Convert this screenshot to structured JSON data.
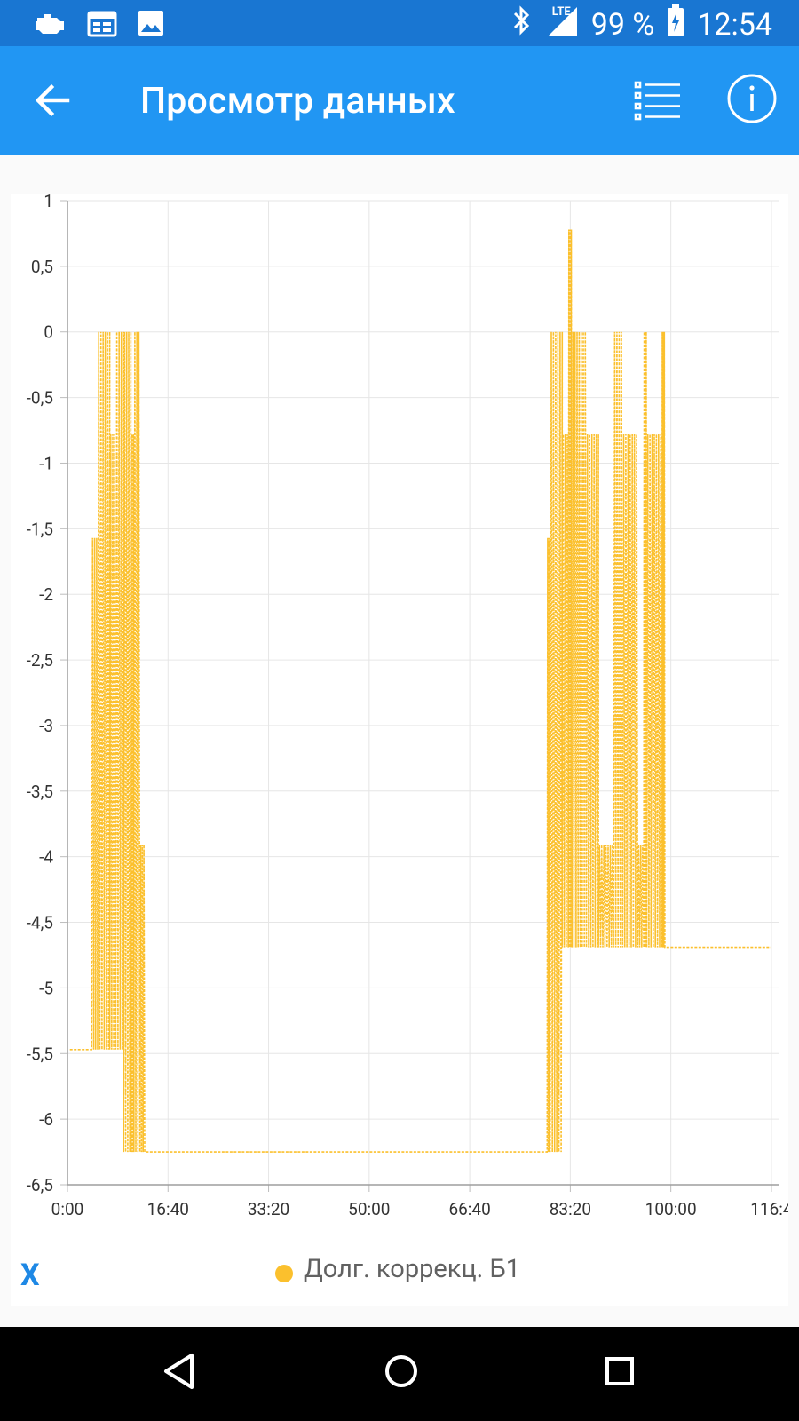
{
  "status_bar": {
    "network": "LTE",
    "battery": "99 %",
    "time": "12:54",
    "icons": [
      "engine-icon",
      "calendar-icon",
      "image-icon",
      "bluetooth-icon",
      "signal-icon",
      "battery-icon"
    ]
  },
  "app_bar": {
    "title": "Просмотр данных",
    "icons": [
      "back-arrow-icon",
      "list-icon",
      "info-icon"
    ]
  },
  "legend": {
    "x_label": "X",
    "series_label": "Долг. коррекц. Б1",
    "color": "#fbc02d"
  },
  "nav_bar": {
    "icons": [
      "back-triangle-icon",
      "home-circle-icon",
      "recents-square-icon"
    ]
  },
  "chart_data": {
    "type": "line",
    "ylim": [
      -6.5,
      1
    ],
    "y_ticks": [
      "1",
      "0,5",
      "0",
      "-0,5",
      "-1",
      "-1,5",
      "-2",
      "-2,5",
      "-3",
      "-3,5",
      "-4",
      "-4,5",
      "-5",
      "-5,5",
      "-6",
      "-6,5"
    ],
    "x_tick_labels": [
      "0:00",
      "16:40",
      "33:20",
      "50:00",
      "66:40",
      "83:20",
      "100:00",
      "116:4"
    ],
    "grid": true,
    "color": "#fbc02d",
    "series": [
      {
        "name": "Долг. коррекц. Б1",
        "bursts": [
          {
            "x_start": 0.4,
            "x_end": 4.0,
            "y_low": -5.47,
            "y_high": -5.47
          },
          {
            "x_start": 4.0,
            "x_end": 5.0,
            "y_low": -5.47,
            "y_high": -1.57
          },
          {
            "x_start": 5.0,
            "x_end": 7.0,
            "y_low": -5.47,
            "y_high": 0
          },
          {
            "x_start": 7.0,
            "x_end": 8.0,
            "y_low": -5.47,
            "y_high": -0.78
          },
          {
            "x_start": 8.0,
            "x_end": 9.3,
            "y_low": -5.47,
            "y_high": 0
          },
          {
            "x_start": 9.3,
            "x_end": 10.5,
            "y_low": -6.25,
            "y_high": 0
          },
          {
            "x_start": 10.5,
            "x_end": 11.0,
            "y_low": -6.25,
            "y_high": -0.78
          },
          {
            "x_start": 11.0,
            "x_end": 12.0,
            "y_low": -6.25,
            "y_high": 0
          },
          {
            "x_start": 12.0,
            "x_end": 12.8,
            "y_low": -6.25,
            "y_high": -3.91
          },
          {
            "x_start": 12.8,
            "x_end": 13.5,
            "y_low": -6.25,
            "y_high": -6.25
          },
          {
            "x_start": 79.5,
            "x_end": 80.0,
            "y_low": -6.25,
            "y_high": -1.57
          },
          {
            "x_start": 80.0,
            "x_end": 82.0,
            "y_low": -6.25,
            "y_high": 0
          },
          {
            "x_start": 82.0,
            "x_end": 83.0,
            "y_low": -4.69,
            "y_high": -0.78
          },
          {
            "x_start": 83.0,
            "x_end": 83.6,
            "y_low": -4.69,
            "y_high": 0.78
          },
          {
            "x_start": 83.6,
            "x_end": 86.0,
            "y_low": -4.69,
            "y_high": 0
          },
          {
            "x_start": 86.0,
            "x_end": 88.0,
            "y_low": -4.69,
            "y_high": -0.78
          },
          {
            "x_start": 88.0,
            "x_end": 90.5,
            "y_low": -4.69,
            "y_high": -3.91
          },
          {
            "x_start": 90.5,
            "x_end": 92.0,
            "y_low": -4.69,
            "y_high": 0
          },
          {
            "x_start": 92.0,
            "x_end": 94.5,
            "y_low": -4.69,
            "y_high": -0.78
          },
          {
            "x_start": 94.5,
            "x_end": 95.5,
            "y_low": -4.69,
            "y_high": -3.91
          },
          {
            "x_start": 95.5,
            "x_end": 96.0,
            "y_low": -4.69,
            "y_high": 0
          },
          {
            "x_start": 96.0,
            "x_end": 98.5,
            "y_low": -4.69,
            "y_high": -0.78
          },
          {
            "x_start": 98.5,
            "x_end": 99.0,
            "y_low": -4.69,
            "y_high": 0
          },
          {
            "x_start": 116.4,
            "x_end": 116.6,
            "y_low": -4.69,
            "y_high": -4.69
          }
        ]
      }
    ]
  }
}
